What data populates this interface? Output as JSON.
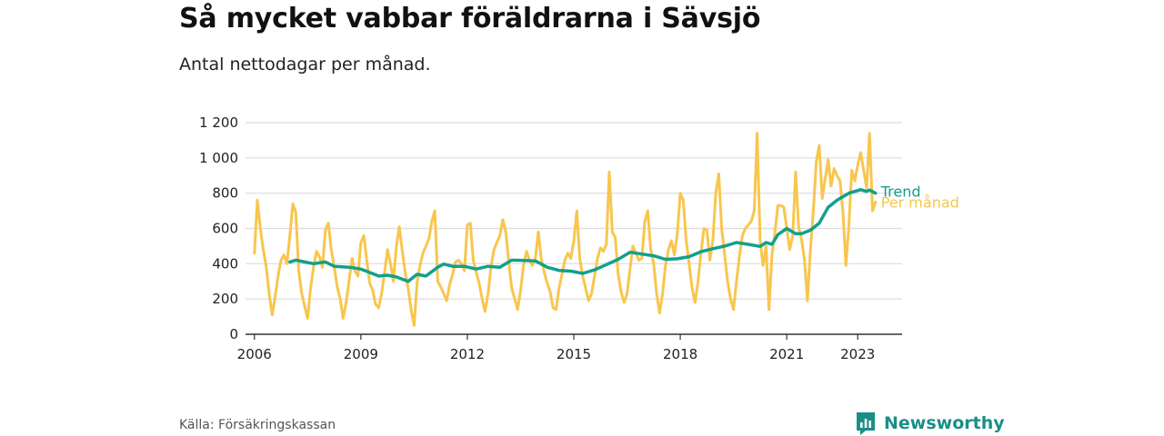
{
  "title": "Så mycket vabbar föräldrarna i Sävsjö",
  "subtitle": "Antal nettodagar per månad.",
  "source": "Källa: Försäkringskassan",
  "brand": {
    "name": "Newsworthy",
    "icon": "newsworthy-logo-icon"
  },
  "colors": {
    "trend": "#12a08c",
    "monthly": "#f8c64e",
    "grid": "#dcdcdc",
    "axis": "#333333",
    "brand": "#1a8f86"
  },
  "chart_data": {
    "type": "line",
    "title": "Så mycket vabbar föräldrarna i Sävsjö",
    "subtitle": "Antal nettodagar per månad.",
    "xlabel": "",
    "ylabel": "",
    "ylim": [
      0,
      1200
    ],
    "xlim": [
      "2005-10",
      "2024-04"
    ],
    "grid": true,
    "legend": "direct labels at line ends",
    "y_ticks": [
      {
        "value": 0,
        "label": "0"
      },
      {
        "value": 200,
        "label": "200"
      },
      {
        "value": 400,
        "label": "400"
      },
      {
        "value": 600,
        "label": "600"
      },
      {
        "value": 800,
        "label": "800"
      },
      {
        "value": 1000,
        "label": "1 000"
      },
      {
        "value": 1200,
        "label": "1 200"
      }
    ],
    "x_ticks": [
      {
        "value": "2006-01",
        "label": "2006"
      },
      {
        "value": "2009-01",
        "label": "2009"
      },
      {
        "value": "2012-01",
        "label": "2012"
      },
      {
        "value": "2015-01",
        "label": "2015"
      },
      {
        "value": "2018-01",
        "label": "2018"
      },
      {
        "value": "2021-01",
        "label": "2021"
      },
      {
        "value": "2023-01",
        "label": "2023"
      }
    ],
    "series": [
      {
        "name": "Per månad",
        "color": "#f8c64e",
        "points": [
          [
            "2006-01",
            460
          ],
          [
            "2006-02",
            760
          ],
          [
            "2006-03",
            600
          ],
          [
            "2006-04",
            480
          ],
          [
            "2006-05",
            380
          ],
          [
            "2006-06",
            230
          ],
          [
            "2006-07",
            110
          ],
          [
            "2006-08",
            210
          ],
          [
            "2006-09",
            330
          ],
          [
            "2006-10",
            420
          ],
          [
            "2006-11",
            450
          ],
          [
            "2006-12",
            400
          ],
          [
            "2007-01",
            560
          ],
          [
            "2007-02",
            740
          ],
          [
            "2007-03",
            690
          ],
          [
            "2007-04",
            360
          ],
          [
            "2007-05",
            230
          ],
          [
            "2007-06",
            160
          ],
          [
            "2007-07",
            90
          ],
          [
            "2007-08",
            260
          ],
          [
            "2007-09",
            380
          ],
          [
            "2007-10",
            470
          ],
          [
            "2007-11",
            440
          ],
          [
            "2007-12",
            380
          ],
          [
            "2008-01",
            590
          ],
          [
            "2008-02",
            630
          ],
          [
            "2008-03",
            480
          ],
          [
            "2008-04",
            380
          ],
          [
            "2008-05",
            270
          ],
          [
            "2008-06",
            200
          ],
          [
            "2008-07",
            90
          ],
          [
            "2008-08",
            180
          ],
          [
            "2008-09",
            300
          ],
          [
            "2008-10",
            430
          ],
          [
            "2008-11",
            360
          ],
          [
            "2008-12",
            330
          ],
          [
            "2009-01",
            520
          ],
          [
            "2009-02",
            560
          ],
          [
            "2009-03",
            420
          ],
          [
            "2009-04",
            290
          ],
          [
            "2009-05",
            250
          ],
          [
            "2009-06",
            170
          ],
          [
            "2009-07",
            150
          ],
          [
            "2009-08",
            230
          ],
          [
            "2009-09",
            350
          ],
          [
            "2009-10",
            480
          ],
          [
            "2009-11",
            400
          ],
          [
            "2009-12",
            300
          ],
          [
            "2010-01",
            500
          ],
          [
            "2010-02",
            610
          ],
          [
            "2010-03",
            470
          ],
          [
            "2010-04",
            350
          ],
          [
            "2010-05",
            260
          ],
          [
            "2010-06",
            140
          ],
          [
            "2010-07",
            50
          ],
          [
            "2010-08",
            290
          ],
          [
            "2010-09",
            390
          ],
          [
            "2010-10",
            460
          ],
          [
            "2010-11",
            500
          ],
          [
            "2010-12",
            540
          ],
          [
            "2011-01",
            640
          ],
          [
            "2011-02",
            700
          ],
          [
            "2011-03",
            300
          ],
          [
            "2011-04",
            270
          ],
          [
            "2011-05",
            230
          ],
          [
            "2011-06",
            190
          ],
          [
            "2011-07",
            280
          ],
          [
            "2011-08",
            340
          ],
          [
            "2011-09",
            410
          ],
          [
            "2011-10",
            420
          ],
          [
            "2011-11",
            400
          ],
          [
            "2011-12",
            360
          ],
          [
            "2012-01",
            620
          ],
          [
            "2012-02",
            630
          ],
          [
            "2012-03",
            420
          ],
          [
            "2012-04",
            350
          ],
          [
            "2012-05",
            290
          ],
          [
            "2012-06",
            200
          ],
          [
            "2012-07",
            130
          ],
          [
            "2012-08",
            230
          ],
          [
            "2012-09",
            380
          ],
          [
            "2012-10",
            480
          ],
          [
            "2012-11",
            520
          ],
          [
            "2012-12",
            560
          ],
          [
            "2013-01",
            650
          ],
          [
            "2013-02",
            580
          ],
          [
            "2013-03",
            410
          ],
          [
            "2013-04",
            260
          ],
          [
            "2013-05",
            200
          ],
          [
            "2013-06",
            140
          ],
          [
            "2013-07",
            250
          ],
          [
            "2013-08",
            390
          ],
          [
            "2013-09",
            470
          ],
          [
            "2013-10",
            420
          ],
          [
            "2013-11",
            390
          ],
          [
            "2013-12",
            430
          ],
          [
            "2014-01",
            580
          ],
          [
            "2014-02",
            430
          ],
          [
            "2014-03",
            350
          ],
          [
            "2014-04",
            290
          ],
          [
            "2014-05",
            240
          ],
          [
            "2014-06",
            150
          ],
          [
            "2014-07",
            140
          ],
          [
            "2014-08",
            260
          ],
          [
            "2014-09",
            340
          ],
          [
            "2014-10",
            420
          ],
          [
            "2014-11",
            460
          ],
          [
            "2014-12",
            430
          ],
          [
            "2015-01",
            530
          ],
          [
            "2015-02",
            700
          ],
          [
            "2015-03",
            430
          ],
          [
            "2015-04",
            330
          ],
          [
            "2015-05",
            260
          ],
          [
            "2015-06",
            190
          ],
          [
            "2015-07",
            230
          ],
          [
            "2015-08",
            330
          ],
          [
            "2015-09",
            430
          ],
          [
            "2015-10",
            490
          ],
          [
            "2015-11",
            470
          ],
          [
            "2015-12",
            510
          ],
          [
            "2016-01",
            920
          ],
          [
            "2016-02",
            580
          ],
          [
            "2016-03",
            550
          ],
          [
            "2016-04",
            340
          ],
          [
            "2016-05",
            240
          ],
          [
            "2016-06",
            180
          ],
          [
            "2016-07",
            230
          ],
          [
            "2016-08",
            370
          ],
          [
            "2016-09",
            500
          ],
          [
            "2016-10",
            460
          ],
          [
            "2016-11",
            420
          ],
          [
            "2016-12",
            430
          ],
          [
            "2017-01",
            640
          ],
          [
            "2017-02",
            700
          ],
          [
            "2017-03",
            480
          ],
          [
            "2017-04",
            400
          ],
          [
            "2017-05",
            230
          ],
          [
            "2017-06",
            120
          ],
          [
            "2017-07",
            230
          ],
          [
            "2017-08",
            390
          ],
          [
            "2017-09",
            480
          ],
          [
            "2017-10",
            530
          ],
          [
            "2017-11",
            450
          ],
          [
            "2017-12",
            570
          ],
          [
            "2018-01",
            800
          ],
          [
            "2018-02",
            760
          ],
          [
            "2018-03",
            530
          ],
          [
            "2018-04",
            400
          ],
          [
            "2018-05",
            260
          ],
          [
            "2018-06",
            180
          ],
          [
            "2018-07",
            300
          ],
          [
            "2018-08",
            460
          ],
          [
            "2018-09",
            600
          ],
          [
            "2018-10",
            590
          ],
          [
            "2018-11",
            420
          ],
          [
            "2018-12",
            530
          ],
          [
            "2019-01",
            800
          ],
          [
            "2019-02",
            910
          ],
          [
            "2019-03",
            600
          ],
          [
            "2019-04",
            450
          ],
          [
            "2019-05",
            300
          ],
          [
            "2019-06",
            200
          ],
          [
            "2019-07",
            140
          ],
          [
            "2019-08",
            300
          ],
          [
            "2019-09",
            440
          ],
          [
            "2019-10",
            560
          ],
          [
            "2019-11",
            600
          ],
          [
            "2019-12",
            620
          ],
          [
            "2020-01",
            640
          ],
          [
            "2020-02",
            700
          ],
          [
            "2020-03",
            1140
          ],
          [
            "2020-04",
            530
          ],
          [
            "2020-05",
            390
          ],
          [
            "2020-06",
            500
          ],
          [
            "2020-07",
            140
          ],
          [
            "2020-08",
            450
          ],
          [
            "2020-09",
            580
          ],
          [
            "2020-10",
            730
          ],
          [
            "2020-11",
            730
          ],
          [
            "2020-12",
            720
          ],
          [
            "2021-01",
            600
          ],
          [
            "2021-02",
            480
          ],
          [
            "2021-03",
            560
          ],
          [
            "2021-04",
            920
          ],
          [
            "2021-05",
            610
          ],
          [
            "2021-06",
            540
          ],
          [
            "2021-07",
            420
          ],
          [
            "2021-08",
            190
          ],
          [
            "2021-09",
            480
          ],
          [
            "2021-10",
            700
          ],
          [
            "2021-11",
            980
          ],
          [
            "2021-12",
            1070
          ],
          [
            "2022-01",
            770
          ],
          [
            "2022-02",
            880
          ],
          [
            "2022-03",
            990
          ],
          [
            "2022-04",
            840
          ],
          [
            "2022-05",
            940
          ],
          [
            "2022-06",
            900
          ],
          [
            "2022-07",
            870
          ],
          [
            "2022-08",
            690
          ],
          [
            "2022-09",
            390
          ],
          [
            "2022-10",
            620
          ],
          [
            "2022-11",
            930
          ],
          [
            "2022-12",
            870
          ],
          [
            "2023-01",
            960
          ],
          [
            "2023-02",
            1030
          ],
          [
            "2023-03",
            930
          ],
          [
            "2023-04",
            830
          ],
          [
            "2023-05",
            1140
          ],
          [
            "2023-06",
            700
          ],
          [
            "2023-07",
            750
          ]
        ]
      },
      {
        "name": "Trend",
        "color": "#12a08c",
        "points": [
          [
            "2007-01",
            410
          ],
          [
            "2007-03",
            420
          ],
          [
            "2007-06",
            410
          ],
          [
            "2007-09",
            400
          ],
          [
            "2008-01",
            410
          ],
          [
            "2008-04",
            385
          ],
          [
            "2008-09",
            380
          ],
          [
            "2009-01",
            370
          ],
          [
            "2009-04",
            350
          ],
          [
            "2009-07",
            330
          ],
          [
            "2009-10",
            335
          ],
          [
            "2010-01",
            325
          ],
          [
            "2010-05",
            300
          ],
          [
            "2010-08",
            340
          ],
          [
            "2010-11",
            330
          ],
          [
            "2011-03",
            380
          ],
          [
            "2011-05",
            398
          ],
          [
            "2011-08",
            385
          ],
          [
            "2011-12",
            385
          ],
          [
            "2012-04",
            370
          ],
          [
            "2012-08",
            385
          ],
          [
            "2012-12",
            380
          ],
          [
            "2013-04",
            420
          ],
          [
            "2013-08",
            418
          ],
          [
            "2013-12",
            416
          ],
          [
            "2014-04",
            380
          ],
          [
            "2014-08",
            362
          ],
          [
            "2014-12",
            358
          ],
          [
            "2015-04",
            345
          ],
          [
            "2015-08",
            365
          ],
          [
            "2015-12",
            395
          ],
          [
            "2016-04",
            425
          ],
          [
            "2016-08",
            465
          ],
          [
            "2016-12",
            455
          ],
          [
            "2017-04",
            445
          ],
          [
            "2017-08",
            425
          ],
          [
            "2017-12",
            428
          ],
          [
            "2018-04",
            440
          ],
          [
            "2018-08",
            468
          ],
          [
            "2018-12",
            485
          ],
          [
            "2019-04",
            500
          ],
          [
            "2019-08",
            520
          ],
          [
            "2019-12",
            510
          ],
          [
            "2020-04",
            498
          ],
          [
            "2020-06",
            520
          ],
          [
            "2020-08",
            510
          ],
          [
            "2020-10",
            565
          ],
          [
            "2021-01",
            600
          ],
          [
            "2021-04",
            570
          ],
          [
            "2021-06",
            570
          ],
          [
            "2021-09",
            590
          ],
          [
            "2021-12",
            630
          ],
          [
            "2022-03",
            720
          ],
          [
            "2022-06",
            760
          ],
          [
            "2022-08",
            780
          ],
          [
            "2022-10",
            800
          ],
          [
            "2022-12",
            810
          ],
          [
            "2023-02",
            820
          ],
          [
            "2023-04",
            810
          ],
          [
            "2023-05",
            818
          ],
          [
            "2023-07",
            800
          ]
        ]
      }
    ]
  }
}
